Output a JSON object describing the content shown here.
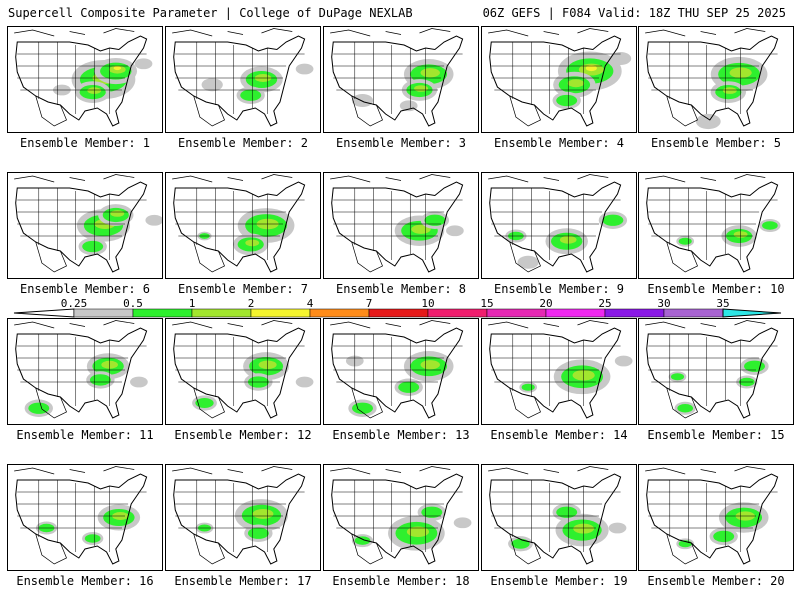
{
  "header": {
    "left_title": "Supercell Composite Parameter | College of DuPage NEXLAB",
    "right_title": "06Z GEFS | F084 Valid: 18Z THU SEP 25 2025"
  },
  "panels": [
    {
      "label": "Ensemble Member: 1",
      "blobs": [
        [
          0.62,
          0.5,
          0.18,
          1.5
        ],
        [
          0.7,
          0.42,
          0.12,
          2.5
        ],
        [
          0.55,
          0.62,
          0.1,
          1.2
        ],
        [
          0.35,
          0.6,
          0.05,
          0.4
        ],
        [
          0.88,
          0.35,
          0.05,
          0.4
        ]
      ]
    },
    {
      "label": "Ensemble Member: 2",
      "blobs": [
        [
          0.62,
          0.5,
          0.12,
          1.2
        ],
        [
          0.55,
          0.65,
          0.08,
          0.8
        ],
        [
          0.3,
          0.55,
          0.06,
          0.4
        ],
        [
          0.9,
          0.4,
          0.05,
          0.4
        ]
      ]
    },
    {
      "label": "Ensemble Member: 3",
      "blobs": [
        [
          0.68,
          0.45,
          0.14,
          1.5
        ],
        [
          0.62,
          0.6,
          0.1,
          1.0
        ],
        [
          0.55,
          0.75,
          0.05,
          0.4
        ],
        [
          0.25,
          0.7,
          0.06,
          0.35
        ]
      ]
    },
    {
      "label": "Ensemble Member: 4",
      "blobs": [
        [
          0.7,
          0.42,
          0.18,
          2.5
        ],
        [
          0.6,
          0.55,
          0.12,
          1.5
        ],
        [
          0.55,
          0.7,
          0.08,
          0.8
        ],
        [
          0.9,
          0.3,
          0.06,
          0.4
        ]
      ]
    },
    {
      "label": "Ensemble Member: 5",
      "blobs": [
        [
          0.65,
          0.45,
          0.16,
          1.8
        ],
        [
          0.58,
          0.62,
          0.1,
          1.0
        ],
        [
          0.45,
          0.9,
          0.07,
          0.4
        ]
      ]
    },
    {
      "label": "Ensemble Member: 6",
      "blobs": [
        [
          0.62,
          0.5,
          0.15,
          1.6
        ],
        [
          0.7,
          0.4,
          0.1,
          1.1
        ],
        [
          0.55,
          0.7,
          0.08,
          0.8
        ],
        [
          0.95,
          0.45,
          0.05,
          0.4
        ]
      ]
    },
    {
      "label": "Ensemble Member: 7",
      "blobs": [
        [
          0.65,
          0.5,
          0.16,
          1.7
        ],
        [
          0.55,
          0.68,
          0.1,
          1.0
        ],
        [
          0.25,
          0.6,
          0.04,
          0.5
        ]
      ]
    },
    {
      "label": "Ensemble Member: 8",
      "blobs": [
        [
          0.62,
          0.55,
          0.14,
          1.4
        ],
        [
          0.72,
          0.45,
          0.08,
          0.9
        ],
        [
          0.85,
          0.55,
          0.05,
          0.4
        ]
      ]
    },
    {
      "label": "Ensemble Member: 9",
      "blobs": [
        [
          0.55,
          0.65,
          0.12,
          1.2
        ],
        [
          0.85,
          0.45,
          0.08,
          0.8
        ],
        [
          0.22,
          0.6,
          0.06,
          0.6
        ],
        [
          0.3,
          0.85,
          0.06,
          0.4
        ]
      ]
    },
    {
      "label": "Ensemble Member: 10",
      "blobs": [
        [
          0.65,
          0.6,
          0.1,
          1.0
        ],
        [
          0.85,
          0.5,
          0.06,
          0.6
        ],
        [
          0.3,
          0.65,
          0.05,
          0.5
        ]
      ]
    },
    {
      "label": "Ensemble Member: 11",
      "blobs": [
        [
          0.65,
          0.45,
          0.12,
          1.2
        ],
        [
          0.6,
          0.58,
          0.08,
          0.8
        ],
        [
          0.2,
          0.85,
          0.08,
          0.9
        ],
        [
          0.85,
          0.6,
          0.05,
          0.4
        ]
      ]
    },
    {
      "label": "Ensemble Member: 12",
      "blobs": [
        [
          0.65,
          0.45,
          0.13,
          1.3
        ],
        [
          0.6,
          0.6,
          0.08,
          0.8
        ],
        [
          0.25,
          0.8,
          0.07,
          0.8
        ],
        [
          0.9,
          0.6,
          0.05,
          0.4
        ]
      ]
    },
    {
      "label": "Ensemble Member: 13",
      "blobs": [
        [
          0.68,
          0.45,
          0.14,
          1.5
        ],
        [
          0.55,
          0.65,
          0.08,
          0.8
        ],
        [
          0.25,
          0.85,
          0.08,
          0.9
        ],
        [
          0.2,
          0.4,
          0.05,
          0.4
        ]
      ]
    },
    {
      "label": "Ensemble Member: 14",
      "blobs": [
        [
          0.65,
          0.55,
          0.16,
          1.6
        ],
        [
          0.3,
          0.65,
          0.05,
          0.5
        ],
        [
          0.92,
          0.4,
          0.05,
          0.4
        ]
      ]
    },
    {
      "label": "Ensemble Member: 15",
      "blobs": [
        [
          0.75,
          0.45,
          0.08,
          0.9
        ],
        [
          0.7,
          0.6,
          0.06,
          0.5
        ],
        [
          0.25,
          0.55,
          0.05,
          0.5
        ],
        [
          0.3,
          0.85,
          0.06,
          0.6
        ]
      ]
    },
    {
      "label": "Ensemble Member: 16",
      "blobs": [
        [
          0.72,
          0.5,
          0.12,
          1.2
        ],
        [
          0.25,
          0.6,
          0.06,
          0.6
        ],
        [
          0.55,
          0.7,
          0.06,
          0.5
        ]
      ]
    },
    {
      "label": "Ensemble Member: 17",
      "blobs": [
        [
          0.62,
          0.48,
          0.15,
          1.5
        ],
        [
          0.6,
          0.65,
          0.08,
          0.8
        ],
        [
          0.25,
          0.6,
          0.05,
          0.5
        ]
      ]
    },
    {
      "label": "Ensemble Member: 18",
      "blobs": [
        [
          0.6,
          0.65,
          0.16,
          1.6
        ],
        [
          0.7,
          0.45,
          0.08,
          0.8
        ],
        [
          0.25,
          0.72,
          0.06,
          0.6
        ],
        [
          0.9,
          0.55,
          0.05,
          0.4
        ]
      ]
    },
    {
      "label": "Ensemble Member: 19",
      "blobs": [
        [
          0.65,
          0.62,
          0.15,
          1.5
        ],
        [
          0.55,
          0.45,
          0.08,
          0.7
        ],
        [
          0.25,
          0.75,
          0.07,
          0.7
        ],
        [
          0.88,
          0.6,
          0.05,
          0.4
        ]
      ]
    },
    {
      "label": "Ensemble Member: 20",
      "blobs": [
        [
          0.68,
          0.5,
          0.14,
          1.5
        ],
        [
          0.55,
          0.68,
          0.08,
          0.8
        ],
        [
          0.3,
          0.75,
          0.05,
          0.5
        ]
      ]
    }
  ],
  "legend": {
    "levels": [
      {
        "label": "0.25",
        "color": "#c8c8c8"
      },
      {
        "label": "0.5",
        "color": "#2ef02e"
      },
      {
        "label": "1",
        "color": "#a2e62e"
      },
      {
        "label": "2",
        "color": "#f5f52e"
      },
      {
        "label": "4",
        "color": "#ff8c1a"
      },
      {
        "label": "7",
        "color": "#e61919"
      },
      {
        "label": "10",
        "color": "#f01e6e"
      },
      {
        "label": "15",
        "color": "#e628b4"
      },
      {
        "label": "20",
        "color": "#f028f0"
      },
      {
        "label": "25",
        "color": "#8a19e6"
      },
      {
        "label": "30",
        "color": "#a864d2"
      },
      {
        "label": "35",
        "color": "#2ee6e6"
      }
    ]
  }
}
